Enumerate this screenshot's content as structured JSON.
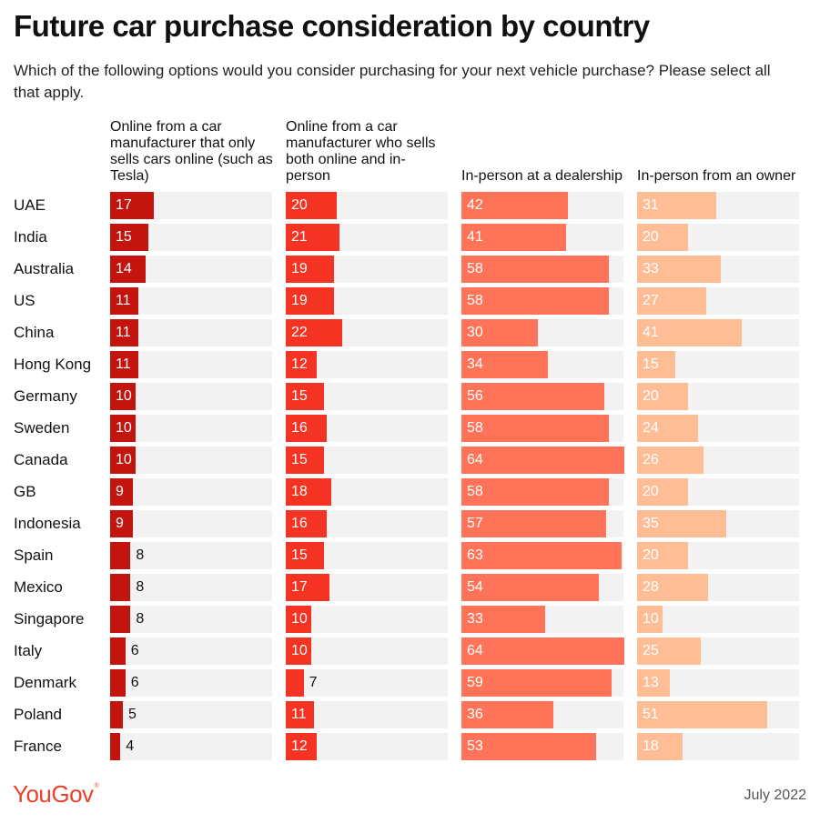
{
  "chart_data": {
    "type": "bar",
    "title": "Future car purchase consideration by country",
    "subtitle": "Which of the following options would you consider purchasing for your next vehicle purchase? Please select all that apply.",
    "categories": [
      "UAE",
      "India",
      "Australia",
      "US",
      "China",
      "Hong Kong",
      "Germany",
      "Sweden",
      "Canada",
      "GB",
      "Indonesia",
      "Spain",
      "Mexico",
      "Singapore",
      "Italy",
      "Denmark",
      "Poland",
      "France"
    ],
    "xlim": [
      0,
      64
    ],
    "series": [
      {
        "name": "Online from a car manufacturer that only sells cars online (such as Tesla)",
        "color": "#c3150e",
        "values": [
          17,
          15,
          14,
          11,
          11,
          11,
          10,
          10,
          10,
          9,
          9,
          8,
          8,
          8,
          6,
          6,
          5,
          4
        ]
      },
      {
        "name": "Online from a car manufacturer who sells both online and in-person",
        "color": "#f53322",
        "values": [
          20,
          21,
          19,
          19,
          22,
          12,
          15,
          16,
          15,
          18,
          16,
          15,
          17,
          10,
          10,
          7,
          11,
          12
        ]
      },
      {
        "name": "In-person at a dealership",
        "color": "#ff7459",
        "values": [
          42,
          41,
          58,
          58,
          30,
          34,
          56,
          58,
          64,
          58,
          57,
          63,
          54,
          33,
          64,
          59,
          36,
          53
        ]
      },
      {
        "name": "In-person from an owner",
        "color": "#ffbd96",
        "values": [
          31,
          20,
          33,
          27,
          41,
          15,
          20,
          24,
          26,
          20,
          35,
          20,
          28,
          10,
          25,
          13,
          51,
          18
        ]
      }
    ]
  },
  "footer": {
    "logo": "YouGov",
    "date": "July 2022"
  },
  "colors": {
    "track": "#f2f2f2",
    "logo": "#e8412c"
  }
}
